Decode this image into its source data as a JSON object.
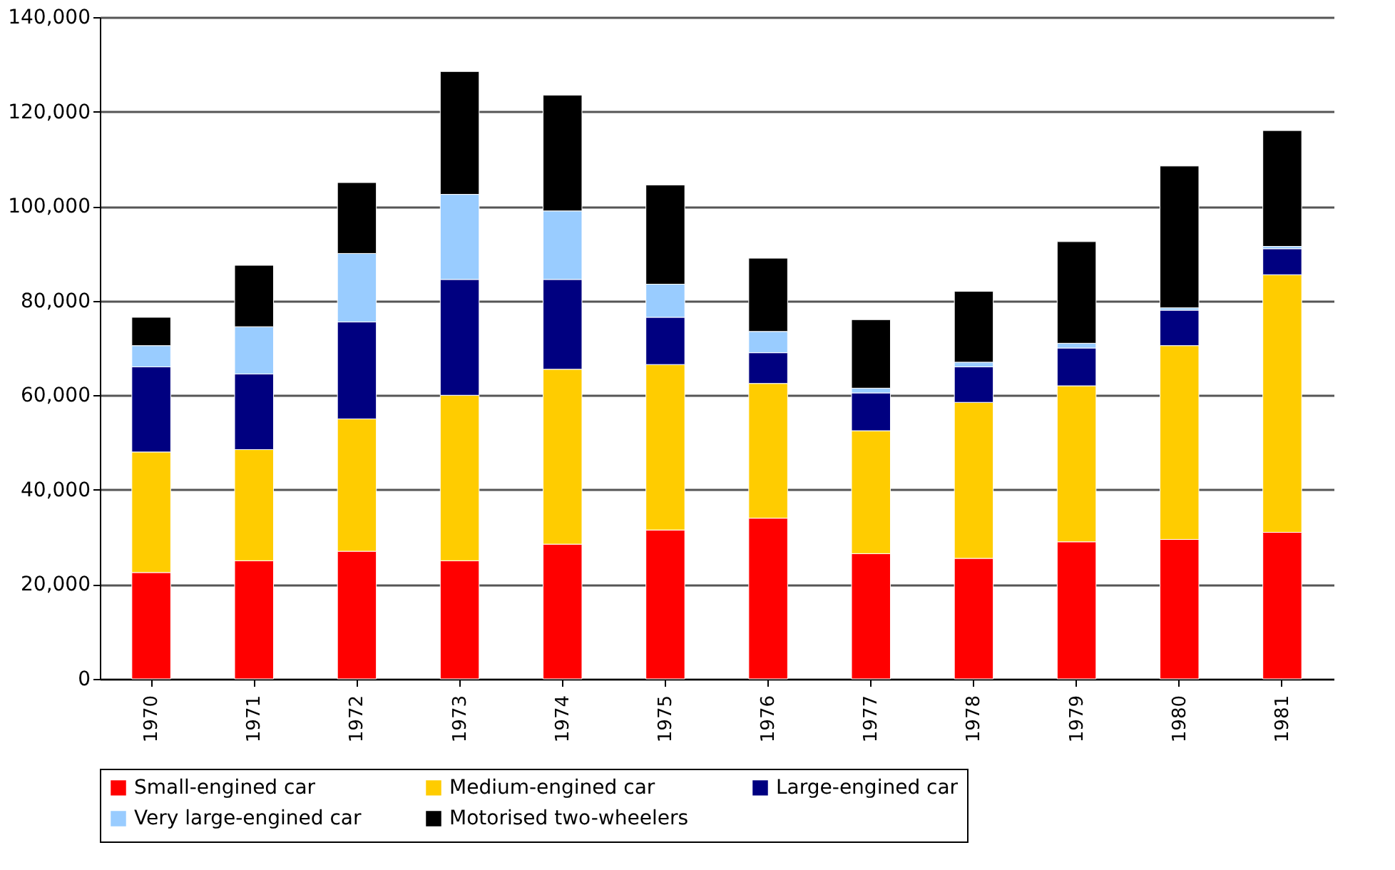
{
  "chart_data": {
    "type": "bar",
    "stacked": true,
    "categories": [
      "1970",
      "1971",
      "1972",
      "1973",
      "1974",
      "1975",
      "1976",
      "1977",
      "1978",
      "1979",
      "1980",
      "1981"
    ],
    "series": [
      {
        "name": "Small-engined car",
        "color": "#ff0000",
        "values": [
          22500,
          25000,
          27000,
          25000,
          28500,
          31500,
          34000,
          26500,
          25500,
          29000,
          29500,
          31000
        ]
      },
      {
        "name": "Medium-engined car",
        "color": "#ffcc00",
        "values": [
          25500,
          23500,
          28000,
          35000,
          37000,
          35000,
          28500,
          26000,
          33000,
          33000,
          41000,
          54500
        ]
      },
      {
        "name": "Large-engined car",
        "color": "#000080",
        "values": [
          18000,
          16000,
          20500,
          24500,
          19000,
          10000,
          6500,
          8000,
          7500,
          8000,
          7500,
          5500
        ]
      },
      {
        "name": "Very large-engined car",
        "color": "#99ccff",
        "values": [
          4500,
          10000,
          14500,
          18000,
          14500,
          7000,
          4500,
          1000,
          1000,
          1000,
          500,
          500
        ]
      },
      {
        "name": "Motorised two-wheelers",
        "color": "#000000",
        "values": [
          6000,
          13000,
          15000,
          26000,
          24500,
          21000,
          15500,
          14500,
          15000,
          21500,
          30000,
          24500
        ]
      }
    ],
    "ylim": [
      0,
      140000
    ],
    "yticks": [
      0,
      {
        "value": 20000,
        "label": "20,000"
      },
      {
        "value": 40000,
        "label": "40,000"
      },
      {
        "value": 60000,
        "label": "60,000"
      },
      {
        "value": 80000,
        "label": "80,000"
      },
      {
        "value": 100000,
        "label": "100,000"
      },
      {
        "value": 120000,
        "label": "120,000"
      },
      {
        "value": 140000,
        "label": "140,000"
      }
    ],
    "grid": "y",
    "legend": "bottom"
  }
}
